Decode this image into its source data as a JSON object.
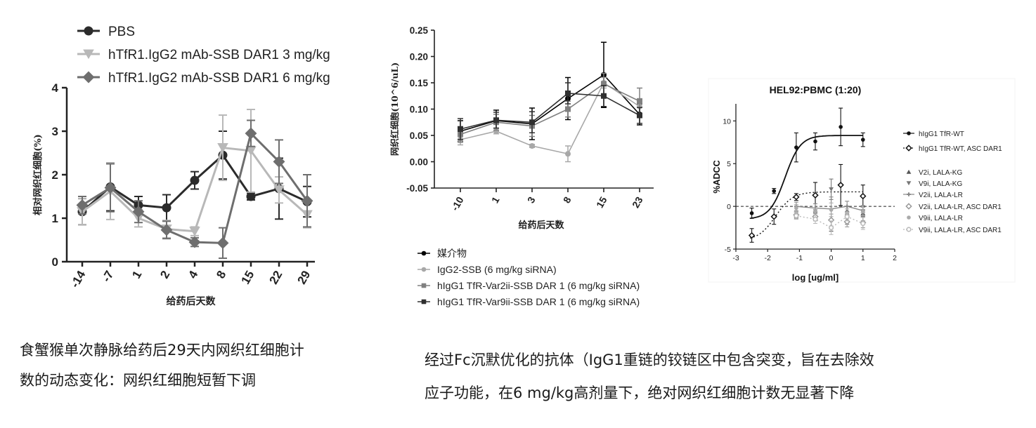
{
  "captions": {
    "left_line1": "食蟹猴单次静脉给药后29天内网织红细胞计",
    "left_line2": "数的动态变化：网织红细胞短暂下调",
    "right_line1": "经过Fc沉默优化的抗体（IgG1重链的铰链区中包含突变，旨在去除效",
    "right_line2": "应子功能，在6 mg/kg高剂量下，绝对网织红细胞计数无显著下降"
  },
  "chart_data": [
    {
      "type": "line",
      "title": "",
      "xlabel": "给药后天数",
      "ylabel": "相对网织红细胞(%)",
      "categories": [
        "-14",
        "-7",
        "1",
        "2",
        "4",
        "8",
        "15",
        "22",
        "29"
      ],
      "ylim": [
        0,
        4
      ],
      "yticks": [
        "0",
        "1",
        "2",
        "3",
        "4"
      ],
      "legend_position": "top-left",
      "series": [
        {
          "name": "PBS",
          "color": "#2b2b2b",
          "marker": "circle",
          "values": [
            1.15,
            1.72,
            1.3,
            1.24,
            1.87,
            2.45,
            1.5,
            1.68,
            1.38
          ],
          "err": [
            0.3,
            0.55,
            0.2,
            0.3,
            0.2,
            0.55,
            0.08,
            0.7,
            0.35
          ]
        },
        {
          "name": "hTfR1.IgG2 mAb-SSB DAR1 3 mg/kg",
          "color": "#b8b8b8",
          "marker": "triangle-down",
          "values": [
            1.15,
            1.62,
            1.0,
            0.75,
            0.7,
            2.62,
            2.55,
            1.65,
            1.08
          ],
          "err": [
            0.3,
            0.65,
            0.2,
            0.2,
            0.1,
            0.75,
            0.95,
            0.3,
            0.3
          ]
        },
        {
          "name": "hTfR1.IgG2 mAb-SSB DAR1 6 mg/kg",
          "color": "#6e6e6e",
          "marker": "diamond",
          "values": [
            1.3,
            1.7,
            1.15,
            0.73,
            0.45,
            0.43,
            2.95,
            2.3,
            1.4
          ],
          "err": [
            0.2,
            0.55,
            0.25,
            0.2,
            0.1,
            0.35,
            0.3,
            0.5,
            0.6
          ]
        }
      ]
    },
    {
      "type": "line",
      "title": "",
      "xlabel": "给药后天数",
      "ylabel": "网织红细胞(10^6/uL)",
      "categories": [
        "-10",
        "1",
        "3",
        "8",
        "15",
        "23"
      ],
      "ylim": [
        -0.05,
        0.25
      ],
      "yticks": [
        "-0.05",
        "0.00",
        "0.05",
        "0.10",
        "0.15",
        "0.20",
        "0.25"
      ],
      "legend_position": "bottom",
      "series": [
        {
          "name": "媒介物",
          "color": "#000000",
          "marker": "circle",
          "values": [
            0.058,
            0.078,
            0.072,
            0.12,
            0.165,
            0.09
          ],
          "err": [
            0.02,
            0.02,
            0.03,
            0.04,
            0.062,
            0.02
          ]
        },
        {
          "name": "IgG2-SSB (6 mg/kg siRNA)",
          "color": "#a8a8a8",
          "marker": "circle",
          "values": [
            0.042,
            0.058,
            0.03,
            0.015,
            0.15,
            0.105
          ],
          "err": [
            0.01,
            0.005,
            0.003,
            0.015,
            0.01,
            0.015
          ]
        },
        {
          "name": "hIgG1 TfR-Var2ii-SSB DAR 1 (6 mg/kg siRNA)",
          "color": "#808080",
          "marker": "square",
          "values": [
            0.052,
            0.075,
            0.068,
            0.1,
            0.148,
            0.115
          ],
          "err": [
            0.015,
            0.015,
            0.02,
            0.015,
            0.02,
            0.025
          ]
        },
        {
          "name": "hIgG1 TfR-Var9ii-SSB DAR 1 (6 mg/kg siRNA)",
          "color": "#303030",
          "marker": "square",
          "values": [
            0.062,
            0.079,
            0.075,
            0.13,
            0.125,
            0.088
          ],
          "err": [
            0.02,
            0.015,
            0.02,
            0.02,
            0.02,
            0.015
          ]
        }
      ]
    },
    {
      "type": "scatter",
      "title": "HEL92:PBMC (1:20)",
      "xlabel": "log [ug/ml]",
      "ylabel": "%ADCC",
      "xlim": [
        -3,
        2
      ],
      "ylim": [
        -5,
        12
      ],
      "xticks": [
        "-3",
        "-2",
        "-1",
        "0",
        "1",
        "2"
      ],
      "yticks": [
        "-5",
        "0",
        "5",
        "10"
      ],
      "reference_line": 0,
      "legend_position": "right",
      "series": [
        {
          "name": "hIgG1 TfR-WT",
          "color": "#111111",
          "marker": "circle",
          "fit": "sigmoid-solid",
          "x": [
            -2.5,
            -1.8,
            -1.1,
            -0.5,
            0.3,
            1.0
          ],
          "y": [
            -0.8,
            1.8,
            6.9,
            7.6,
            9.3,
            7.8
          ],
          "err": [
            0.6,
            0.3,
            1.7,
            1.0,
            2.2,
            0.8
          ]
        },
        {
          "name": "hIgG1 TfR-WT, ASC DAR1",
          "color": "#111111",
          "marker": "diamond-open",
          "fit": "dotted",
          "x": [
            -2.5,
            -1.8,
            -1.1,
            -0.5,
            0.3,
            1.0
          ],
          "y": [
            -3.4,
            -1.2,
            1.1,
            1.3,
            2.5,
            1.2
          ],
          "err": [
            0.8,
            0.9,
            0.4,
            1.5,
            2.4,
            1.3
          ]
        },
        {
          "name": "V2i, LALA-KG",
          "color": "#555555",
          "marker": "triangle-up",
          "fit": "none",
          "x": [
            -1.1,
            -0.5,
            0.0,
            0.5,
            1.0
          ],
          "y": [
            -1.0,
            -1.2,
            -2.3,
            -0.5,
            -0.8
          ],
          "err": [
            0.3,
            0.4,
            0.6,
            0.5,
            0.4
          ]
        },
        {
          "name": "V9i, LALA-KG",
          "color": "#777777",
          "marker": "triangle-down",
          "fit": "none",
          "x": [
            -1.1,
            -0.5,
            0.0,
            0.5,
            1.0
          ],
          "y": [
            -1.2,
            -0.8,
            2.0,
            -1.5,
            -1.2
          ],
          "err": [
            0.3,
            0.4,
            1.2,
            0.6,
            0.5
          ]
        },
        {
          "name": "V2ii, LALA-LR",
          "color": "#888888",
          "marker": "cross",
          "fit": "solid",
          "x": [
            -1.1,
            -0.5,
            0.0,
            0.5,
            1.0
          ],
          "y": [
            0.0,
            -0.2,
            -0.3,
            0.0,
            -0.5
          ],
          "err": [
            0.5,
            0.5,
            1.4,
            0.6,
            0.6
          ]
        },
        {
          "name": "V2ii, LALA-LR, ASC DAR1",
          "color": "#999999",
          "marker": "diamond-open",
          "fit": "none",
          "x": [
            -1.1,
            -0.5,
            0.0,
            0.5,
            1.0
          ],
          "y": [
            -1.0,
            -1.2,
            -1.6,
            -1.8,
            -1.9
          ],
          "err": [
            0.4,
            0.5,
            0.7,
            0.6,
            0.6
          ]
        },
        {
          "name": "V9ii, LALA-LR",
          "color": "#aaaaaa",
          "marker": "circle",
          "fit": "none",
          "x": [
            -1.1,
            -0.5,
            0.0,
            0.5,
            1.0
          ],
          "y": [
            -0.2,
            -0.6,
            -0.4,
            -0.8,
            -0.6
          ],
          "err": [
            0.4,
            0.4,
            0.8,
            0.5,
            0.5
          ]
        },
        {
          "name": "V9ii, LALA-LR, ASC DAR1",
          "color": "#bbbbbb",
          "marker": "circle-open",
          "fit": "dotted",
          "x": [
            -1.1,
            -0.5,
            0.0,
            0.5,
            1.0
          ],
          "y": [
            -1.1,
            -1.5,
            -2.5,
            -1.2,
            -2.0
          ],
          "err": [
            0.4,
            0.5,
            0.8,
            0.5,
            0.7
          ]
        }
      ]
    }
  ]
}
